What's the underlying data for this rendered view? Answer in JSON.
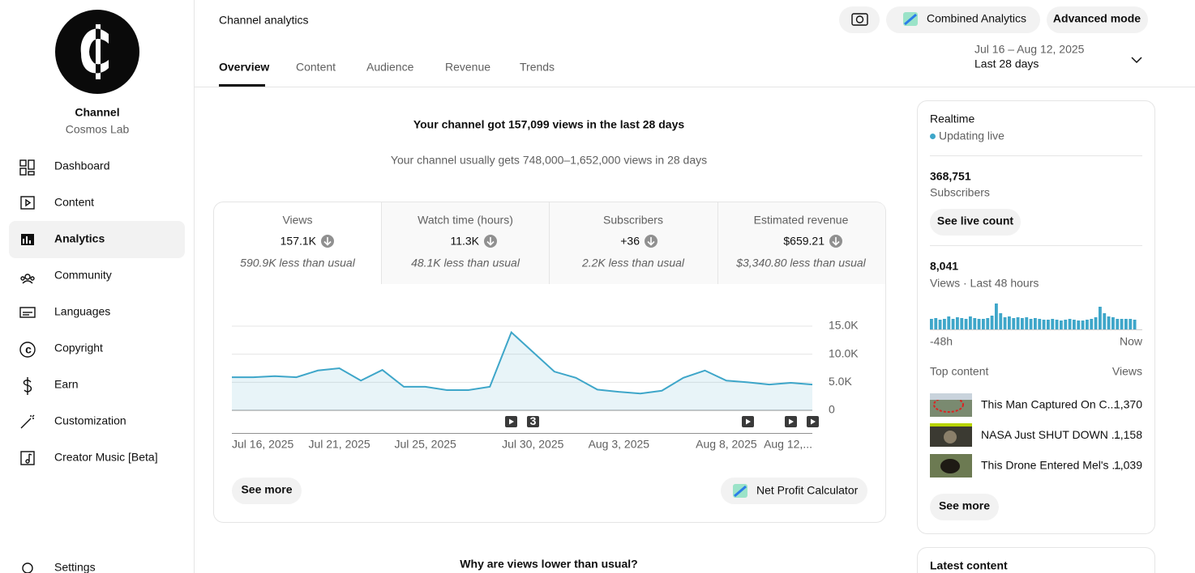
{
  "sidebar": {
    "channel_title": "Channel",
    "channel_name": "Cosmos Lab",
    "nav": [
      "Dashboard",
      "Content",
      "Analytics",
      "Community",
      "Languages",
      "Copyright",
      "Earn",
      "Customization",
      "Creator Music [Beta]"
    ],
    "settings": "Settings"
  },
  "header": {
    "title": "Channel analytics",
    "combined_analytics": "Combined Analytics",
    "advanced_mode": "Advanced mode",
    "tabs": [
      "Overview",
      "Content",
      "Audience",
      "Revenue",
      "Trends"
    ],
    "date_range": "Jul 16 – Aug 12, 2025",
    "period": "Last 28 days"
  },
  "summary": {
    "headline": "Your channel got 157,099 views in the last 28 days",
    "subline": "Your channel usually gets 748,000–1,652,000 views in 28 days"
  },
  "metrics": [
    {
      "label": "Views",
      "value": "157.1K",
      "note": "590.9K less than usual"
    },
    {
      "label": "Watch time (hours)",
      "value": "11.3K",
      "note": "48.1K less than usual"
    },
    {
      "label": "Subscribers",
      "value": "+36",
      "note": "2.2K less than usual"
    },
    {
      "label": "Estimated revenue",
      "value": "$659.21",
      "note": "$3,340.80 less than usual"
    }
  ],
  "chart_data": {
    "type": "line",
    "categories": [
      "Jul 16, 2025",
      null,
      null,
      null,
      null,
      "Jul 21, 2025",
      null,
      null,
      null,
      "Jul 25, 2025",
      null,
      null,
      null,
      null,
      "Jul 30, 2025",
      null,
      null,
      null,
      "Aug 3, 2025",
      null,
      null,
      null,
      null,
      "Aug 8, 2025",
      null,
      null,
      null,
      "Aug 12,..."
    ],
    "values": [
      5900,
      5900,
      6100,
      5900,
      7100,
      7500,
      5300,
      7200,
      4200,
      4200,
      3600,
      3600,
      4200,
      13900,
      10400,
      6900,
      5800,
      3700,
      3300,
      3000,
      3500,
      5800,
      7100,
      5300,
      5000,
      4600,
      4900,
      4600
    ],
    "color": "#3ea6c9",
    "ylim": [
      0,
      15000
    ],
    "yticks": [
      0,
      {
        "value": 5000,
        "label": "5.0K"
      },
      {
        "value": 10000,
        "label": "10.0K"
      },
      {
        "value": 15000,
        "label": "15.0K"
      }
    ],
    "grid": true,
    "annotations": [
      "3"
    ]
  },
  "card_buttons": {
    "see_more": "See more",
    "net_profit_calculator": "Net Profit Calculator"
  },
  "realtime": {
    "title": "Realtime",
    "status": "Updating live",
    "subscribers": "368,751",
    "subscribers_label": "Subscribers",
    "see_live_count": "See live count",
    "views": "8,041",
    "views_label": "Views · Last 48 hours",
    "chart": {
      "type": "bar",
      "color": "#3ea6c9",
      "values": [
        156,
        168,
        144,
        156,
        192,
        156,
        180,
        168,
        156,
        192,
        168,
        156,
        156,
        168,
        204,
        384,
        240,
        180,
        192,
        168,
        180,
        168,
        180,
        156,
        168,
        156,
        144,
        144,
        156,
        144,
        132,
        144,
        156,
        144,
        132,
        132,
        144,
        156,
        180,
        336,
        240,
        192,
        180,
        156,
        156,
        156,
        156,
        144
      ],
      "x_start": "-48h",
      "x_end": "Now"
    },
    "top_content_label": "Top content",
    "views_column": "Views",
    "top_content": [
      {
        "title": "This Man Captured On C...",
        "views": "1,370"
      },
      {
        "title": "NASA Just SHUT DOWN ...",
        "views": "1,158"
      },
      {
        "title": "This Drone Entered Mel's ...",
        "views": "1,039"
      }
    ],
    "see_more": "See more"
  },
  "latest_content": {
    "title": "Latest content"
  },
  "question": "Why are views lower than usual?"
}
